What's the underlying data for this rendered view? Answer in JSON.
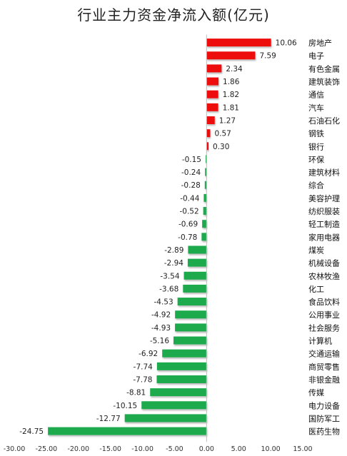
{
  "chart_data": {
    "type": "bar",
    "orientation": "horizontal",
    "title": "行业主力资金净流入额(亿元)",
    "xlim": [
      -30,
      15
    ],
    "xticks": [
      -30,
      -25,
      -20,
      -15,
      -10,
      -5,
      0,
      5,
      10,
      15
    ],
    "xtick_labels": [
      "-30.00",
      "-25.00",
      "-20.00",
      "-15.00",
      "-10.00",
      "-5.00",
      "0.00",
      "5.00",
      "10.00",
      "15.00"
    ],
    "positive_color": "#ee1111",
    "negative_color": "#1eaa4e",
    "categories": [
      "房地产",
      "电子",
      "有色金属",
      "建筑装饰",
      "通信",
      "汽车",
      "石油石化",
      "钢铁",
      "银行",
      "环保",
      "建筑材料",
      "综合",
      "美容护理",
      "纺织服装",
      "轻工制造",
      "家用电器",
      "煤炭",
      "机械设备",
      "农林牧渔",
      "化工",
      "食品饮料",
      "公用事业",
      "社会服务",
      "计算机",
      "交通运输",
      "商贸零售",
      "非银金融",
      "传媒",
      "电力设备",
      "国防军工",
      "医药生物"
    ],
    "values": [
      10.06,
      7.59,
      2.34,
      1.86,
      1.82,
      1.81,
      1.27,
      0.57,
      0.3,
      -0.15,
      -0.24,
      -0.28,
      -0.44,
      -0.52,
      -0.69,
      -0.78,
      -2.89,
      -2.94,
      -3.54,
      -3.68,
      -4.53,
      -4.92,
      -4.93,
      -5.16,
      -6.92,
      -7.74,
      -7.78,
      -8.81,
      -10.15,
      -12.77,
      -24.75
    ],
    "value_labels": [
      "10.06",
      "7.59",
      "2.34",
      "1.86",
      "1.82",
      "1.81",
      "1.27",
      "0.57",
      "0.30",
      "-0.15",
      "-0.24",
      "-0.28",
      "-0.44",
      "-0.52",
      "-0.69",
      "-0.78",
      "-2.89",
      "-2.94",
      "-3.54",
      "-3.68",
      "-4.53",
      "-4.92",
      "-4.93",
      "-5.16",
      "-6.92",
      "-7.74",
      "-7.78",
      "-8.81",
      "-10.15",
      "-12.77",
      "-24.75"
    ]
  }
}
